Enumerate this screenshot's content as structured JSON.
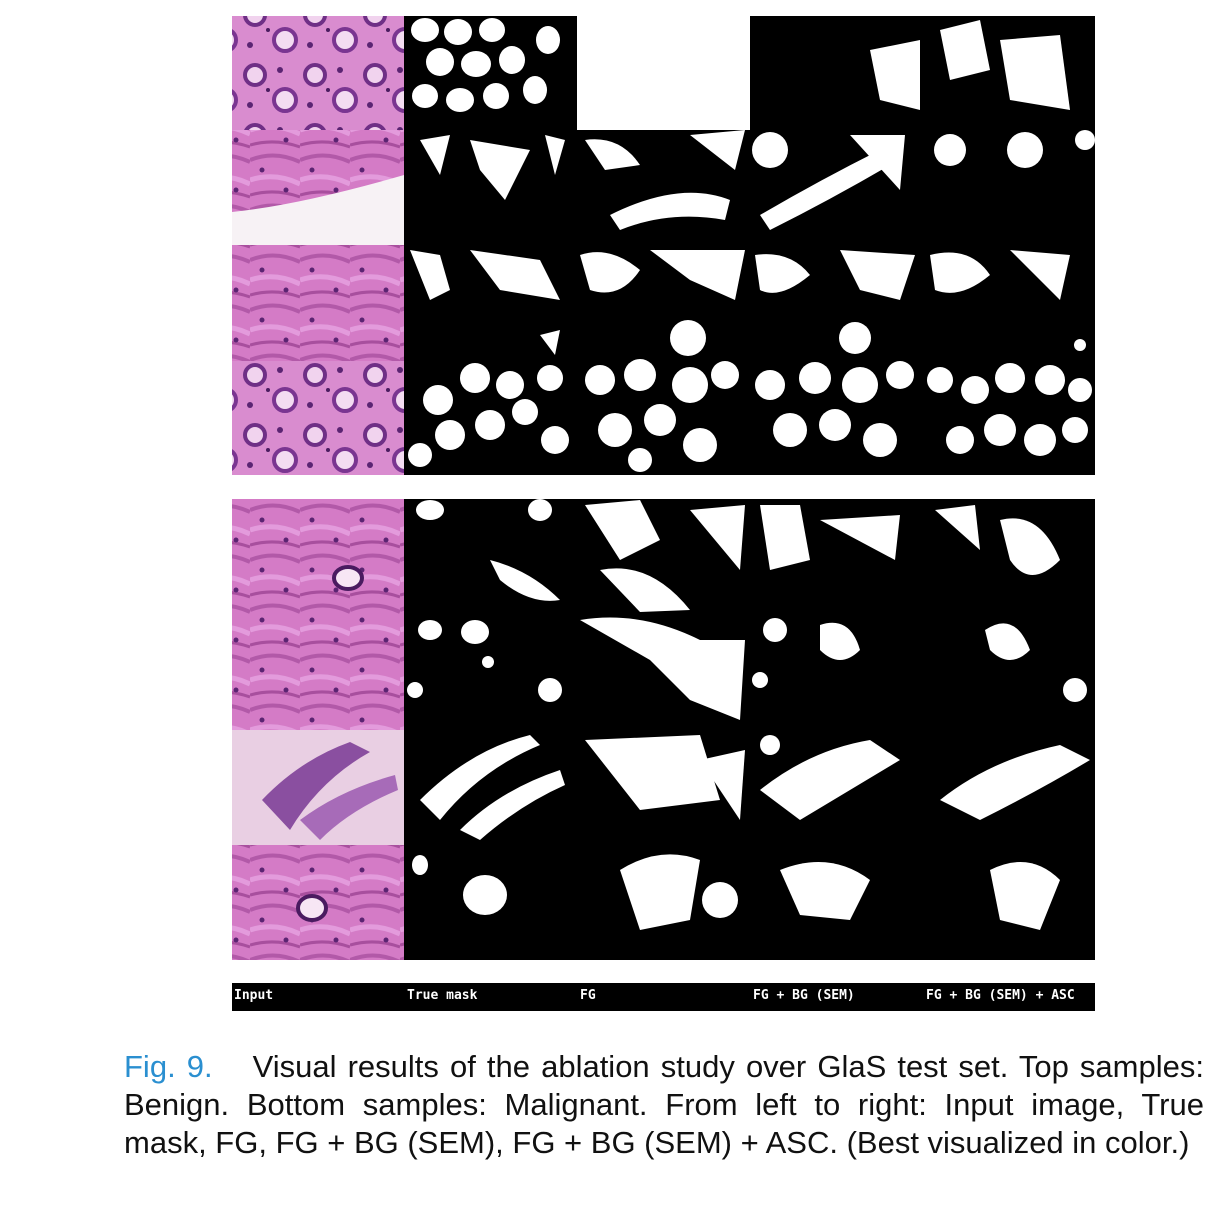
{
  "figure": {
    "groups": [
      "Benign",
      "Malignant"
    ],
    "column_labels": [
      "Input",
      "True mask",
      "FG",
      "FG + BG (SEM)",
      "FG + BG (SEM) + ASC"
    ],
    "colors": {
      "tissue_pink": "#d77bc8",
      "tissue_purple": "#6f2f86",
      "mask_white": "#ffffff",
      "mask_black": "#000000",
      "label_bar": "#000000"
    }
  },
  "caption": {
    "label": "Fig. 9.",
    "text": "Visual results of the ablation study over GlaS test set. Top samples: Benign. Bottom samples: Malignant. From left to right: Input image, True mask, FG, FG + BG (SEM), FG + BG (SEM) + ASC. (Best visualized in color.)"
  }
}
